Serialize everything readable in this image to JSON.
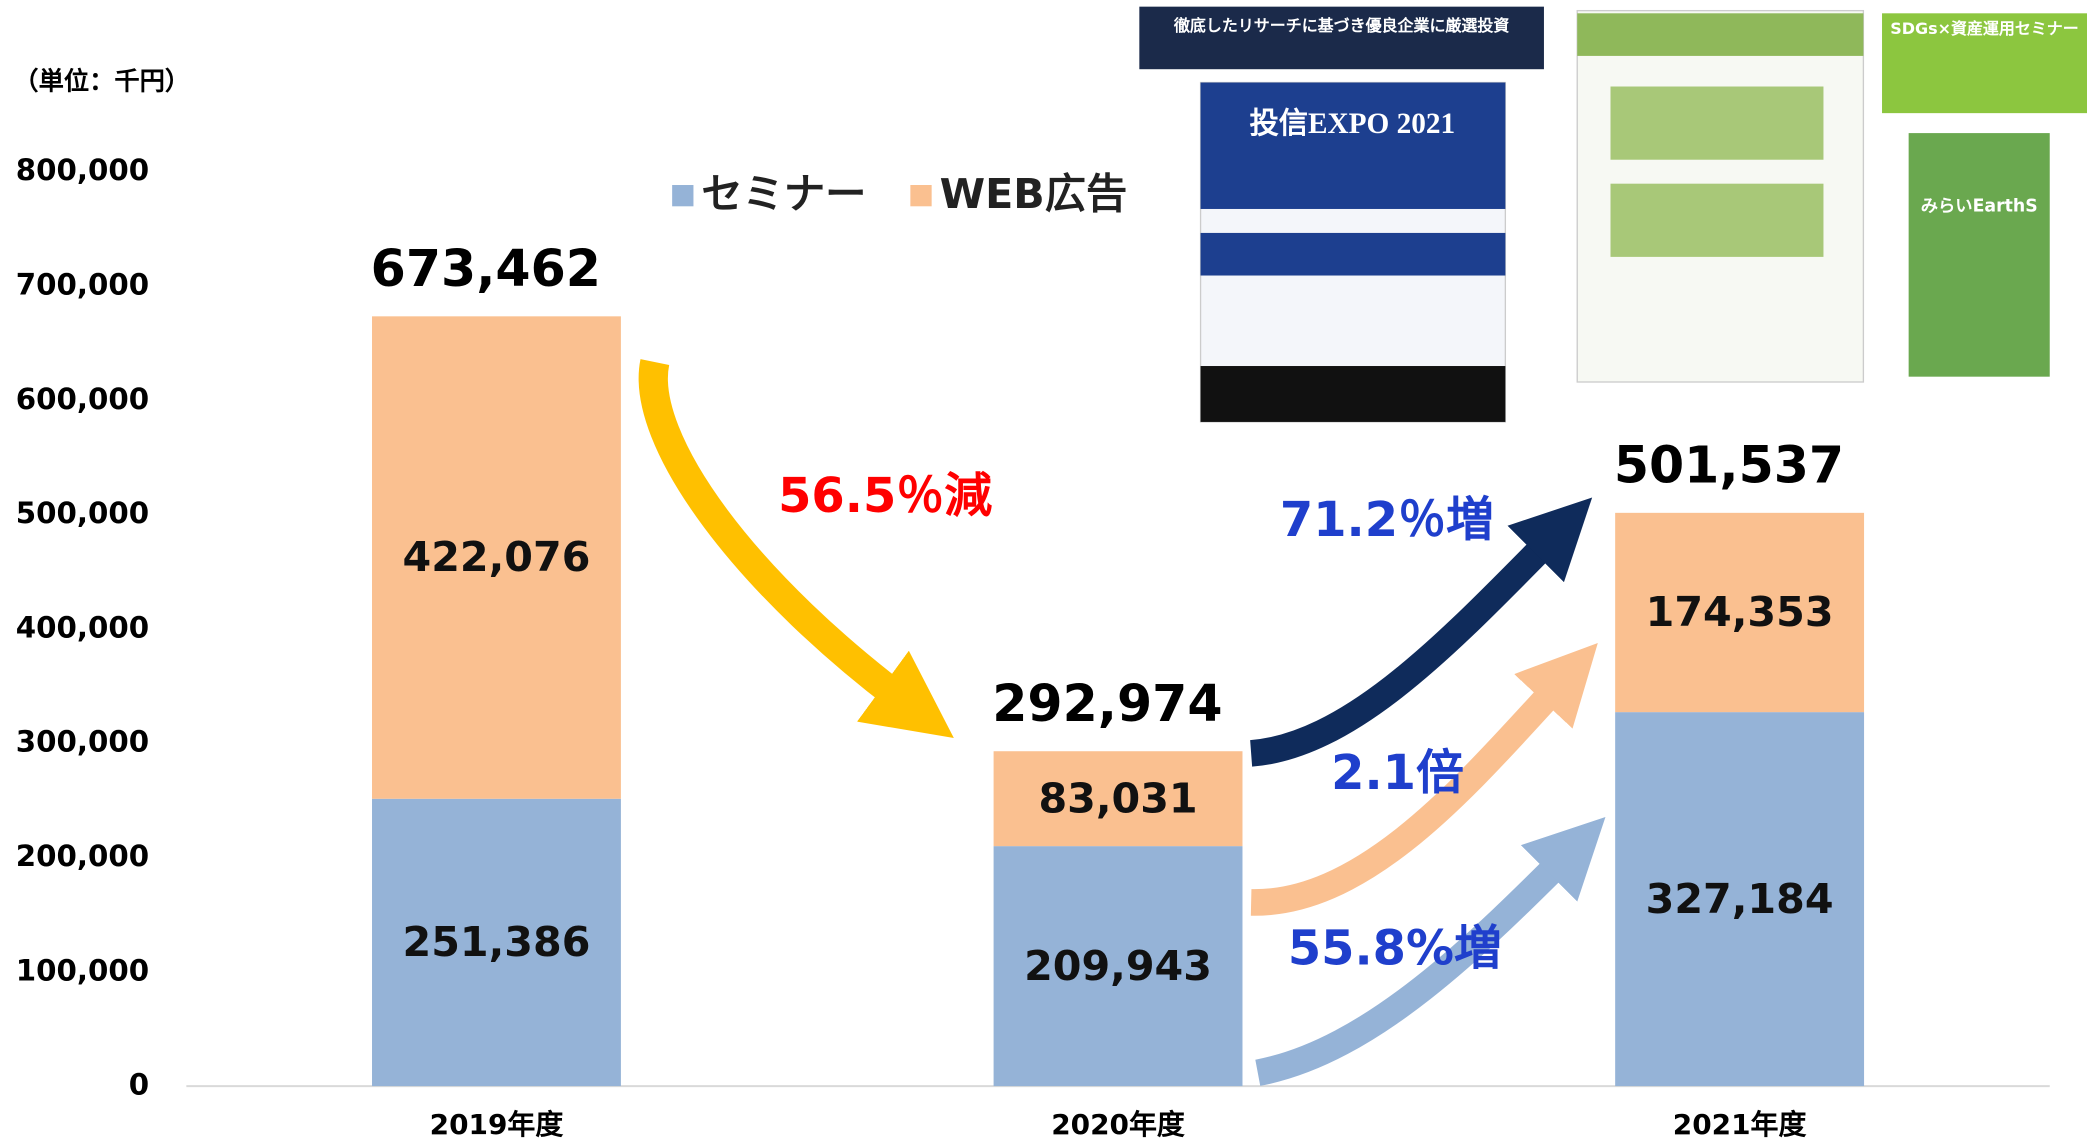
{
  "chart_data": {
    "type": "stacked-bar",
    "unit_label": "（単位：千円）",
    "categories": [
      "2019年度",
      "2020年度",
      "2021年度"
    ],
    "series": [
      {
        "name": "セミナー",
        "color": "#95b3d7",
        "values": [
          251386,
          209943,
          327184
        ],
        "value_labels": [
          "251,386",
          "209,943",
          "327,184"
        ]
      },
      {
        "name": "WEB広告",
        "color": "#fac090",
        "values": [
          422076,
          83031,
          174353
        ],
        "value_labels": [
          "422,076",
          "83,031",
          "174,353"
        ]
      }
    ],
    "totals": [
      673462,
      292974,
      501537
    ],
    "total_labels": [
      "673,462",
      "292,974",
      "501,537"
    ],
    "ylim": [
      0,
      800000
    ],
    "yticks": [
      0,
      {
        "value": 100000,
        "label": "100,000"
      },
      {
        "value": 200000,
        "label": "200,000"
      },
      {
        "value": 300000,
        "label": "300,000"
      },
      {
        "value": 400000,
        "label": "400,000"
      },
      {
        "value": 500000,
        "label": "500,000"
      },
      {
        "value": 600000,
        "label": "600,000"
      },
      {
        "value": 700000,
        "label": "700,000"
      },
      {
        "value": 800000,
        "label": "800,000"
      }
    ],
    "legend": "top",
    "annotations": [
      "56.5％減",
      "71.2％増",
      "2.1倍",
      "55.8%増"
    ]
  },
  "thumbnails": {
    "banner": "徹底したリサーチに基づき優良企業に厳選投資",
    "expo": "投信EXPO 2021",
    "seminar": "SDGs×資産運用セミナー",
    "earths": "みらいEarthS"
  }
}
